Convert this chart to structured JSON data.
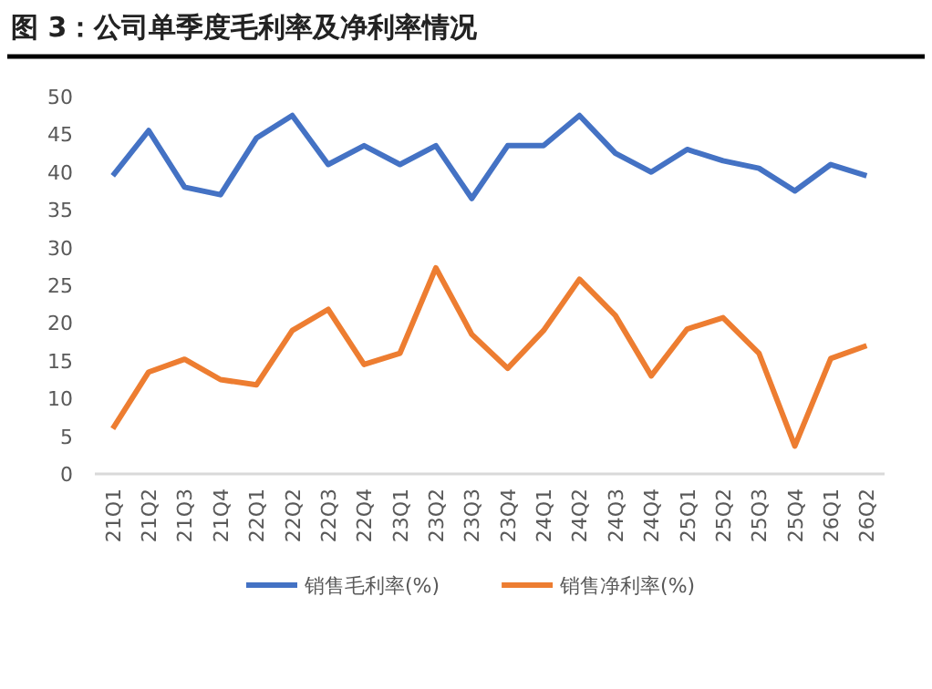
{
  "chart_data": {
    "type": "line",
    "title": "图 3：公司单季度毛利率及净利率情况",
    "categories": [
      "21Q1",
      "21Q2",
      "21Q3",
      "21Q4",
      "22Q1",
      "22Q2",
      "22Q3",
      "22Q4",
      "23Q1",
      "23Q2",
      "23Q3",
      "23Q4",
      "24Q1",
      "24Q2",
      "24Q3",
      "24Q4",
      "25Q1",
      "25Q2",
      "25Q3",
      "25Q4",
      "26Q1",
      "26Q2"
    ],
    "series": [
      {
        "name": "销售毛利率(%)",
        "color": "#4472c4",
        "values": [
          39.5,
          45.5,
          38,
          37,
          44.5,
          47.5,
          41,
          43.5,
          41,
          43.5,
          36.5,
          43.5,
          43.5,
          47.5,
          42.5,
          40,
          43,
          41.5,
          40.5,
          37.5,
          41,
          39.5
        ]
      },
      {
        "name": "销售净利率(%)",
        "color": "#ed7d31",
        "values": [
          6,
          13.5,
          15.2,
          12.5,
          11.8,
          19,
          21.8,
          14.5,
          16,
          27.3,
          18.5,
          14,
          19,
          25.8,
          21,
          13,
          19.2,
          20.7,
          16,
          3.7,
          15.3,
          17
        ]
      }
    ],
    "ylim": [
      0,
      50
    ],
    "yticks": [
      0,
      5,
      10,
      15,
      20,
      25,
      30,
      35,
      40,
      45,
      50
    ],
    "legend": "bottom",
    "marker": "none",
    "line_style": "solid"
  }
}
